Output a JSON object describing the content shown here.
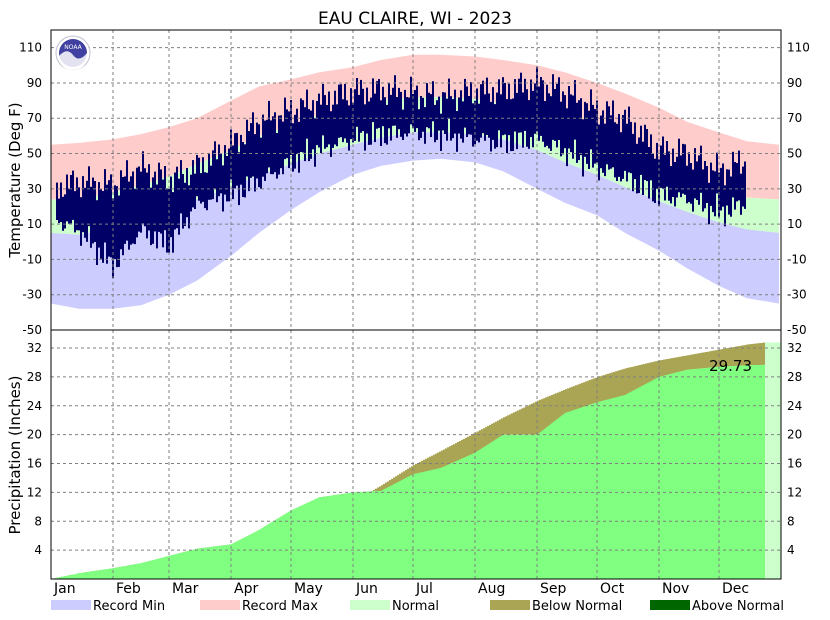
{
  "chart_data": [
    {
      "type": "area",
      "title": "EAU CLAIRE, WI - 2023",
      "ylabel": "Temperature (Deg F)",
      "ylim": [
        -50,
        120
      ],
      "yticks": [
        -50,
        -30,
        -10,
        10,
        30,
        50,
        70,
        90,
        110
      ],
      "x": [
        1,
        15,
        32,
        46,
        60,
        74,
        91,
        105,
        121,
        135,
        152,
        166,
        182,
        196,
        213,
        227,
        244,
        258,
        274,
        288,
        305,
        319,
        335,
        349,
        365
      ],
      "series": [
        {
          "name": "Record Max",
          "color": "#ffcccc",
          "values": [
            55,
            56,
            58,
            61,
            65,
            70,
            80,
            88,
            92,
            96,
            99,
            103,
            106,
            106,
            105,
            103,
            100,
            96,
            90,
            84,
            76,
            68,
            62,
            57,
            55
          ]
        },
        {
          "name": "Record Min",
          "color": "#ccccff",
          "values": [
            -35,
            -38,
            -38,
            -36,
            -30,
            -22,
            -8,
            5,
            18,
            28,
            38,
            43,
            46,
            47,
            45,
            40,
            30,
            22,
            15,
            5,
            -5,
            -15,
            -25,
            -32,
            -35
          ]
        },
        {
          "name": "Normal",
          "color": "#ccffcc",
          "high": [
            24,
            24,
            28,
            32,
            37,
            44,
            52,
            60,
            66,
            72,
            76,
            80,
            82,
            82,
            81,
            78,
            73,
            66,
            58,
            50,
            41,
            34,
            28,
            25,
            24
          ],
          "low": [
            5,
            4,
            8,
            12,
            17,
            24,
            31,
            38,
            44,
            50,
            55,
            59,
            62,
            62,
            61,
            58,
            52,
            45,
            38,
            31,
            23,
            17,
            11,
            7,
            5
          ]
        },
        {
          "name": "Observed",
          "color": "#000066",
          "high": [
            30,
            34,
            32,
            42,
            35,
            42,
            55,
            68,
            74,
            80,
            85,
            86,
            84,
            82,
            85,
            86,
            90,
            85,
            75,
            70,
            52,
            50,
            40,
            46,
            50
          ],
          "low": [
            18,
            10,
            -10,
            10,
            2,
            25,
            30,
            38,
            48,
            56,
            62,
            64,
            66,
            64,
            62,
            60,
            62,
            55,
            46,
            40,
            30,
            28,
            20,
            25,
            35
          ]
        }
      ]
    },
    {
      "type": "area",
      "ylabel": "Precipitation (Inches)",
      "ylim": [
        0,
        34.5
      ],
      "yticks": [
        4,
        8,
        12,
        16,
        20,
        24,
        28,
        32
      ],
      "categories": [
        "Jan",
        "Feb",
        "Mar",
        "Apr",
        "May",
        "Jun",
        "Jul",
        "Aug",
        "Sep",
        "Oct",
        "Nov",
        "Dec"
      ],
      "total_label": "29.73",
      "x": [
        1,
        15,
        32,
        46,
        60,
        74,
        91,
        105,
        121,
        135,
        152,
        166,
        182,
        196,
        213,
        227,
        244,
        258,
        274,
        288,
        305,
        319,
        335,
        349,
        365
      ],
      "series": [
        {
          "name": "Normal",
          "values": [
            0.0,
            0.5,
            1.0,
            1.5,
            2.0,
            2.7,
            3.6,
            4.8,
            6.5,
            8.2,
            10.7,
            13.0,
            15.8,
            17.8,
            20.3,
            22.4,
            24.7,
            26.3,
            28.0,
            29.2,
            30.3,
            31.0,
            31.8,
            32.5,
            33.0
          ]
        },
        {
          "name": "Observed",
          "values": [
            0.0,
            0.8,
            1.5,
            2.2,
            3.2,
            4.2,
            4.8,
            6.8,
            9.5,
            11.3,
            12.0,
            12.2,
            14.5,
            15.4,
            17.5,
            20.0,
            20.0,
            23.0,
            24.5,
            25.5,
            28.0,
            29.0,
            29.4,
            29.6,
            29.73
          ]
        }
      ]
    }
  ],
  "legend": [
    {
      "label": "Record Min",
      "color": "#ccccff"
    },
    {
      "label": "Record Max",
      "color": "#ffcccc"
    },
    {
      "label": "Normal",
      "color": "#ccffcc"
    },
    {
      "label": "Below Normal",
      "color": "#aaa555"
    },
    {
      "label": "Above Normal",
      "color": "#006600"
    }
  ],
  "colors": {
    "precip_observed": "#80ff80",
    "grid": "#808080",
    "noaa_blue": "#4040a0"
  },
  "logo_text": "NOAA"
}
